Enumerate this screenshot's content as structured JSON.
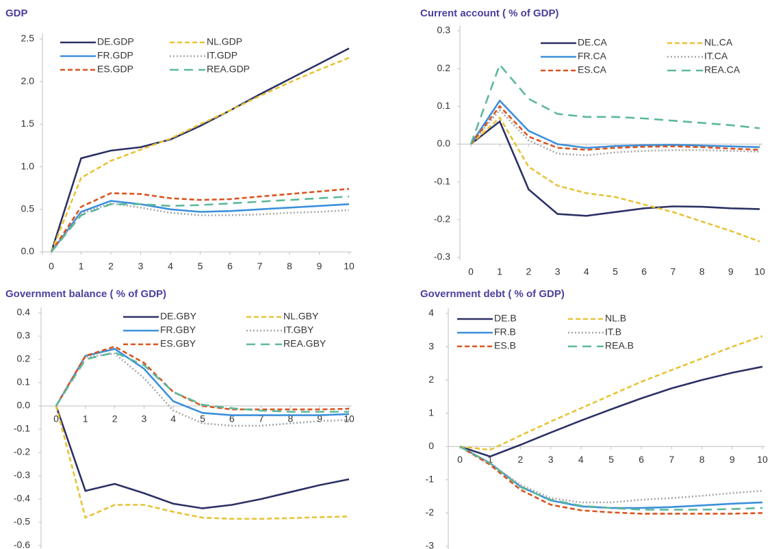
{
  "chart_data": [
    {
      "type": "line",
      "title": "GDP",
      "x": [
        0,
        1,
        2,
        3,
        4,
        5,
        6,
        7,
        8,
        9,
        10
      ],
      "xlim": [
        0,
        10
      ],
      "xticks": [
        0,
        1,
        2,
        3,
        4,
        5,
        6,
        7,
        8,
        9,
        10
      ],
      "ylim": [
        0,
        2.5
      ],
      "yticks": [
        {
          "value": 0,
          "label": "0.0"
        },
        0.5,
        {
          "value": 1,
          "label": "1.0"
        },
        1.5,
        {
          "value": 2,
          "label": "2.0"
        },
        2.5
      ],
      "series": [
        {
          "name": "DE.GDP",
          "color": "#2b3064",
          "style": "solid",
          "values": [
            0,
            1.1,
            1.19,
            1.23,
            1.32,
            1.48,
            1.66,
            1.85,
            2.03,
            2.21,
            2.39
          ]
        },
        {
          "name": "NL.GDP",
          "color": "#e8c233",
          "style": "dashed",
          "values": [
            0,
            0.87,
            1.07,
            1.2,
            1.33,
            1.5,
            1.66,
            1.83,
            1.99,
            2.14,
            2.28
          ]
        },
        {
          "name": "FR.GDP",
          "color": "#3b8fdb",
          "style": "solid",
          "values": [
            0,
            0.47,
            0.6,
            0.56,
            0.5,
            0.47,
            0.48,
            0.5,
            0.52,
            0.54,
            0.56
          ]
        },
        {
          "name": "IT.GDP",
          "color": "#a6a6a6",
          "style": "dotted",
          "values": [
            0,
            0.45,
            0.57,
            0.52,
            0.46,
            0.43,
            0.43,
            0.44,
            0.46,
            0.47,
            0.49
          ]
        },
        {
          "name": "ES.GDP",
          "color": "#d9531e",
          "style": "dashed",
          "values": [
            0,
            0.53,
            0.69,
            0.68,
            0.63,
            0.61,
            0.62,
            0.65,
            0.68,
            0.71,
            0.74
          ]
        },
        {
          "name": "REA.GDP",
          "color": "#5cb89a",
          "style": "longdash",
          "values": [
            0,
            0.43,
            0.56,
            0.56,
            0.54,
            0.55,
            0.57,
            0.59,
            0.61,
            0.63,
            0.65
          ]
        }
      ]
    },
    {
      "type": "line",
      "title": "Current account ( % of GDP)",
      "x": [
        0,
        1,
        2,
        3,
        4,
        5,
        6,
        7,
        8,
        9,
        10
      ],
      "xlim": [
        0,
        10
      ],
      "xticks": [
        0,
        1,
        2,
        3,
        4,
        5,
        6,
        7,
        8,
        9,
        10
      ],
      "ylim": [
        -0.3,
        0.3
      ],
      "yticks": [
        -0.3,
        -0.2,
        -0.1,
        {
          "value": 0,
          "label": "0.0"
        },
        0.1,
        0.2,
        0.3
      ],
      "series": [
        {
          "name": "DE.CA",
          "color": "#2b3064",
          "style": "solid",
          "values": [
            0,
            0.06,
            -0.12,
            -0.185,
            -0.19,
            -0.18,
            -0.17,
            -0.165,
            -0.166,
            -0.17,
            -0.172
          ]
        },
        {
          "name": "NL.CA",
          "color": "#e8c233",
          "style": "dashed",
          "values": [
            0,
            0.07,
            -0.06,
            -0.11,
            -0.13,
            -0.14,
            -0.16,
            -0.18,
            -0.205,
            -0.23,
            -0.258
          ]
        },
        {
          "name": "FR.CA",
          "color": "#3b8fdb",
          "style": "solid",
          "values": [
            0,
            0.115,
            0.035,
            0,
            -0.01,
            -0.005,
            -0.003,
            -0.002,
            -0.004,
            -0.006,
            -0.008
          ]
        },
        {
          "name": "IT.CA",
          "color": "#a6a6a6",
          "style": "dotted",
          "values": [
            0,
            0.09,
            0.01,
            -0.025,
            -0.03,
            -0.022,
            -0.018,
            -0.016,
            -0.016,
            -0.018,
            -0.02
          ]
        },
        {
          "name": "ES.CA",
          "color": "#d9531e",
          "style": "dashed",
          "values": [
            0,
            0.1,
            0.02,
            -0.01,
            -0.015,
            -0.01,
            -0.007,
            -0.006,
            -0.008,
            -0.012,
            -0.015
          ]
        },
        {
          "name": "REA.CA",
          "color": "#5cb89a",
          "style": "longdash",
          "values": [
            0,
            0.21,
            0.12,
            0.08,
            0.072,
            0.072,
            0.068,
            0.062,
            0.056,
            0.05,
            0.042
          ]
        }
      ]
    },
    {
      "type": "line",
      "title": "Government balance ( % of GDP)",
      "x": [
        0,
        1,
        2,
        3,
        4,
        5,
        6,
        7,
        8,
        9,
        10
      ],
      "xlim": [
        0,
        10
      ],
      "xticks": [
        0,
        1,
        2,
        3,
        4,
        5,
        6,
        7,
        8,
        9,
        10
      ],
      "ylim": [
        -0.6,
        0.4
      ],
      "yticks": [
        -0.6,
        -0.5,
        -0.4,
        -0.3,
        -0.2,
        -0.1,
        {
          "value": 0,
          "label": "0.0"
        },
        0.1,
        0.2,
        0.3,
        0.4
      ],
      "series": [
        {
          "name": "DE.GBY",
          "color": "#2b3064",
          "style": "solid",
          "values": [
            0,
            -0.365,
            -0.335,
            -0.375,
            -0.42,
            -0.44,
            -0.425,
            -0.4,
            -0.37,
            -0.34,
            -0.315
          ]
        },
        {
          "name": "NL.GBY",
          "color": "#e8c233",
          "style": "dashed",
          "values": [
            0,
            -0.48,
            -0.425,
            -0.425,
            -0.455,
            -0.48,
            -0.485,
            -0.485,
            -0.482,
            -0.478,
            -0.475
          ]
        },
        {
          "name": "FR.GBY",
          "color": "#3b8fdb",
          "style": "solid",
          "values": [
            0,
            0.215,
            0.245,
            0.16,
            0.02,
            -0.03,
            -0.04,
            -0.04,
            -0.04,
            -0.04,
            -0.035
          ]
        },
        {
          "name": "IT.GBY",
          "color": "#a6a6a6",
          "style": "dotted",
          "values": [
            0,
            0.21,
            0.225,
            0.12,
            -0.02,
            -0.075,
            -0.085,
            -0.085,
            -0.075,
            -0.065,
            -0.06
          ]
        },
        {
          "name": "ES.GBY",
          "color": "#d9531e",
          "style": "dashed",
          "values": [
            0,
            0.215,
            0.255,
            0.185,
            0.06,
            0,
            -0.015,
            -0.015,
            -0.015,
            -0.015,
            -0.012
          ]
        },
        {
          "name": "REA.GBY",
          "color": "#5cb89a",
          "style": "longdash",
          "values": [
            0,
            0.2,
            0.23,
            0.175,
            0.06,
            0.005,
            -0.01,
            -0.02,
            -0.025,
            -0.025,
            -0.025
          ]
        }
      ]
    },
    {
      "type": "line",
      "title": "Government debt ( % of GDP)",
      "x": [
        0,
        1,
        2,
        3,
        4,
        5,
        6,
        7,
        8,
        9,
        10
      ],
      "xlim": [
        0,
        10
      ],
      "xticks": [
        0,
        1,
        2,
        3,
        4,
        5,
        6,
        7,
        8,
        9,
        10
      ],
      "ylim": [
        -3,
        4
      ],
      "yticks": [
        -3,
        -2,
        -1,
        0,
        1,
        2,
        3,
        4
      ],
      "series": [
        {
          "name": "DE.B",
          "color": "#2b3064",
          "style": "solid",
          "values": [
            0,
            -0.3,
            0.05,
            0.42,
            0.78,
            1.12,
            1.45,
            1.75,
            2.0,
            2.22,
            2.4
          ]
        },
        {
          "name": "NL.B",
          "color": "#e8c233",
          "style": "dashed",
          "values": [
            0,
            -0.1,
            0.33,
            0.75,
            1.15,
            1.55,
            1.95,
            2.3,
            2.65,
            3.0,
            3.32
          ]
        },
        {
          "name": "FR.B",
          "color": "#3b8fdb",
          "style": "solid",
          "values": [
            0,
            -0.5,
            -1.2,
            -1.62,
            -1.8,
            -1.85,
            -1.85,
            -1.82,
            -1.77,
            -1.72,
            -1.68
          ]
        },
        {
          "name": "IT.B",
          "color": "#a6a6a6",
          "style": "dotted",
          "values": [
            0,
            -0.52,
            -1.15,
            -1.55,
            -1.68,
            -1.68,
            -1.6,
            -1.55,
            -1.48,
            -1.4,
            -1.33
          ]
        },
        {
          "name": "ES.B",
          "color": "#d9531e",
          "style": "dashed",
          "values": [
            0,
            -0.55,
            -1.3,
            -1.75,
            -1.92,
            -1.98,
            -2.02,
            -2.02,
            -2.02,
            -2.02,
            -2.0
          ]
        },
        {
          "name": "REA.B",
          "color": "#5cb89a",
          "style": "longdash",
          "values": [
            0,
            -0.5,
            -1.22,
            -1.6,
            -1.78,
            -1.85,
            -1.9,
            -1.9,
            -1.9,
            -1.88,
            -1.85
          ]
        }
      ]
    }
  ]
}
